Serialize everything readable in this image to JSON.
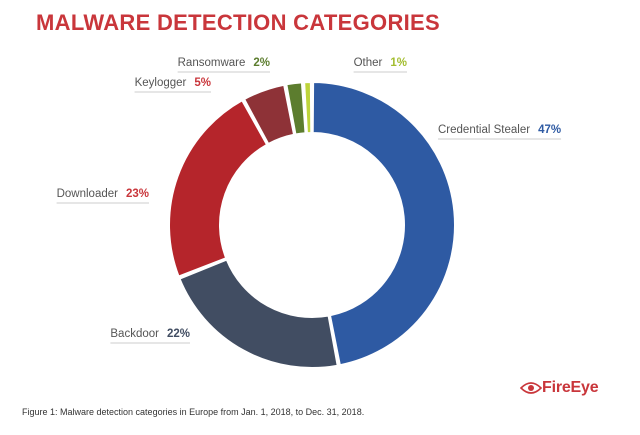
{
  "title": "MALWARE DETECTION CATEGORIES",
  "caption": "Figure 1: Malware detection categories in Europe from Jan. 1, 2018, to Dec. 31, 2018.",
  "logo": {
    "text": "FireEye",
    "icon": "fireeye-eye-logo",
    "color": "#c9363b"
  },
  "chart_data": {
    "type": "pie",
    "variant": "donut",
    "title": "MALWARE DETECTION CATEGORIES",
    "unit": "%",
    "categories": [
      "Credential Stealer",
      "Backdoor",
      "Downloader",
      "Keylogger",
      "Ransomware",
      "Other"
    ],
    "values": [
      47,
      22,
      23,
      5,
      2,
      1
    ],
    "colors": [
      "#2e5aa3",
      "#414d62",
      "#b5252b",
      "#8e3237",
      "#5c7d2e",
      "#bed43b"
    ],
    "label_colors": [
      "#2e5aa3",
      "#414d62",
      "#c9363b",
      "#c9363b",
      "#5c7d2e",
      "#a3bd2f"
    ]
  }
}
